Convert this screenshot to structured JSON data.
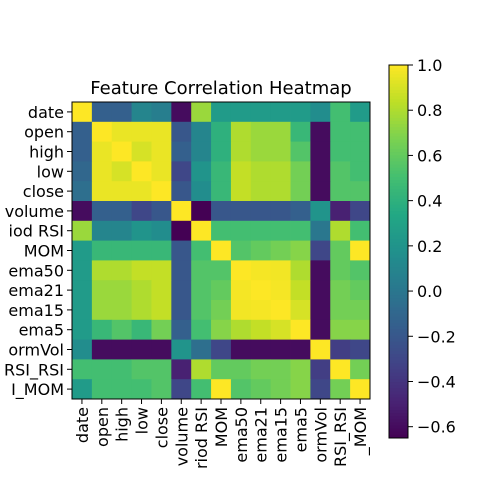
{
  "chart_data": {
    "type": "heatmap",
    "title": "Feature Correlation Heatmap",
    "xlabel": "",
    "ylabel": "",
    "row_labels": [
      "date",
      "open",
      "high",
      "low",
      "close",
      "volume",
      "iod RSI",
      "MOM",
      "ema50",
      "ema21",
      "ema15",
      "ema5",
      "ormVol",
      "RSI_RSI",
      "I_MOM"
    ],
    "col_labels": [
      "date",
      "open",
      "high",
      "low",
      "close",
      "volume",
      "riod RSI",
      "MOM",
      "ema50",
      "ema21",
      "ema15",
      "ema5",
      "ormVol",
      "RSI_RSI",
      "_MOM"
    ],
    "colormap": "viridis",
    "vmin": -0.65,
    "vmax": 1.0,
    "colorbar_ticks": [
      "1.0",
      "0.8",
      "0.6",
      "0.4",
      "0.2",
      "0.0",
      "−0.2",
      "−0.4",
      "−0.6"
    ],
    "colorbar_tick_values": [
      1.0,
      0.8,
      0.6,
      0.4,
      0.2,
      0.0,
      -0.2,
      -0.4,
      -0.6
    ],
    "values": [
      [
        1.0,
        -0.15,
        -0.15,
        0.1,
        0.05,
        -0.6,
        0.75,
        0.25,
        0.25,
        0.25,
        0.25,
        0.25,
        0.15,
        0.5,
        0.25
      ],
      [
        -0.15,
        1.0,
        0.95,
        0.95,
        0.95,
        -0.2,
        0.1,
        0.4,
        0.8,
        0.75,
        0.75,
        0.45,
        -0.6,
        0.5,
        0.5
      ],
      [
        -0.15,
        0.95,
        1.0,
        0.9,
        0.95,
        -0.15,
        0.1,
        0.4,
        0.8,
        0.75,
        0.75,
        0.55,
        -0.6,
        0.5,
        0.5
      ],
      [
        -0.1,
        0.95,
        0.9,
        1.0,
        0.95,
        -0.3,
        0.2,
        0.45,
        0.85,
        0.8,
        0.8,
        0.65,
        -0.6,
        0.55,
        0.5
      ],
      [
        -0.05,
        0.95,
        0.95,
        0.95,
        1.0,
        -0.2,
        0.15,
        0.45,
        0.85,
        0.8,
        0.8,
        0.65,
        -0.6,
        0.55,
        0.55
      ],
      [
        -0.6,
        -0.15,
        -0.15,
        -0.3,
        -0.2,
        1.0,
        -0.65,
        -0.2,
        -0.2,
        -0.2,
        -0.2,
        -0.15,
        0.2,
        -0.5,
        -0.3
      ],
      [
        0.75,
        0.1,
        0.1,
        0.2,
        0.15,
        -0.65,
        1.0,
        0.5,
        0.5,
        0.5,
        0.5,
        0.5,
        0.0,
        0.8,
        0.5
      ],
      [
        0.25,
        0.45,
        0.45,
        0.45,
        0.45,
        -0.2,
        0.5,
        1.0,
        0.55,
        0.6,
        0.65,
        0.7,
        -0.3,
        0.6,
        1.0
      ],
      [
        0.25,
        0.8,
        0.8,
        0.85,
        0.85,
        -0.2,
        0.55,
        0.55,
        1.0,
        0.98,
        0.97,
        0.8,
        -0.6,
        0.6,
        0.55
      ],
      [
        0.25,
        0.75,
        0.75,
        0.8,
        0.85,
        -0.2,
        0.55,
        0.6,
        0.98,
        1.0,
        0.98,
        0.85,
        -0.6,
        0.65,
        0.6
      ],
      [
        0.25,
        0.75,
        0.75,
        0.8,
        0.85,
        -0.2,
        0.55,
        0.65,
        0.97,
        0.98,
        1.0,
        0.9,
        -0.6,
        0.65,
        0.65
      ],
      [
        0.25,
        0.45,
        0.55,
        0.45,
        0.65,
        -0.15,
        0.5,
        0.7,
        0.8,
        0.85,
        0.9,
        1.0,
        -0.6,
        0.7,
        0.7
      ],
      [
        0.15,
        -0.6,
        -0.6,
        -0.6,
        -0.6,
        0.2,
        -0.05,
        -0.3,
        -0.6,
        -0.6,
        -0.6,
        -0.6,
        1.0,
        -0.35,
        -0.3
      ],
      [
        0.5,
        0.5,
        0.5,
        0.55,
        0.55,
        -0.5,
        0.8,
        0.6,
        0.6,
        0.65,
        0.65,
        0.7,
        -0.35,
        1.0,
        0.65
      ],
      [
        0.25,
        0.5,
        0.5,
        0.5,
        0.55,
        -0.3,
        0.5,
        1.0,
        0.55,
        0.6,
        0.65,
        0.7,
        -0.3,
        0.65,
        1.0
      ]
    ]
  }
}
